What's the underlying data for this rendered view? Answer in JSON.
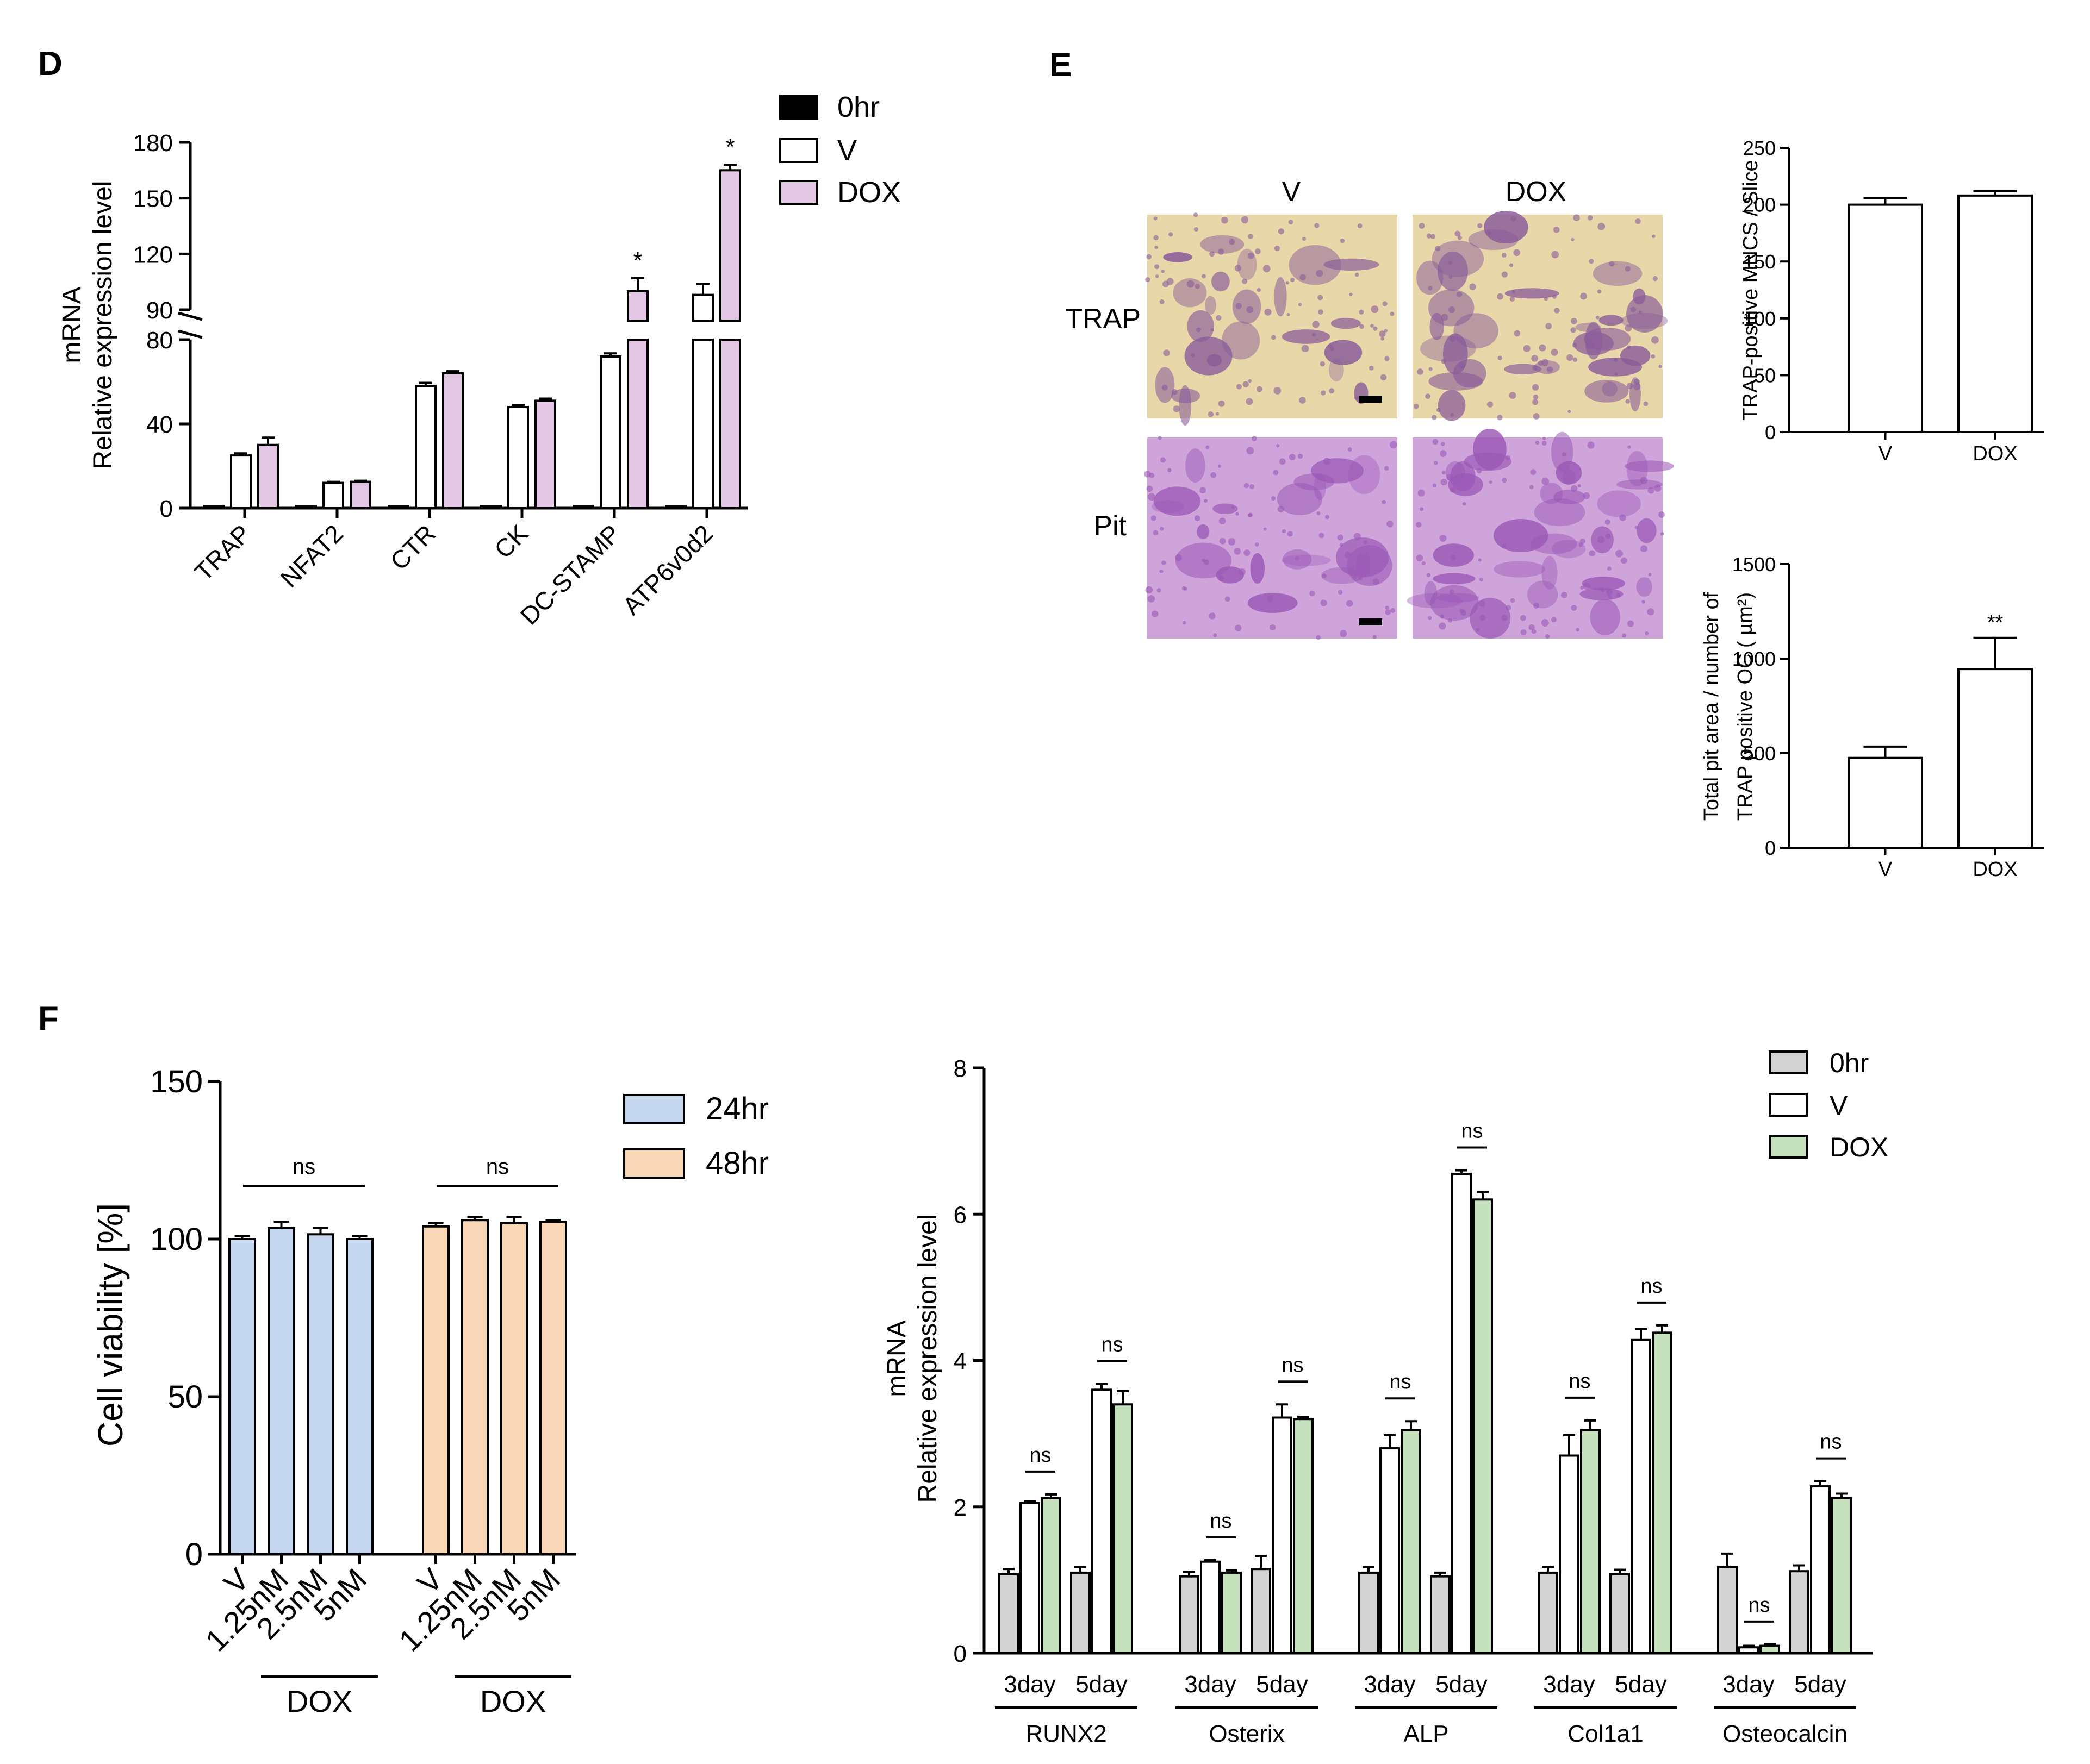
{
  "colors": {
    "h0": "#000000",
    "v": "#ffffff",
    "dox_d": "#e3c6e3",
    "h24": "#c5d8ef",
    "h48": "#f9d6b5",
    "h0_g": "#d3d3d3",
    "dox_g": "#c5e1bd",
    "trap_bg": "#e7d7a9",
    "trap_cell": "#8a5b99",
    "pit_bg": "#cfa4db",
    "pit_cell": "#9a58b6"
  },
  "panels": {
    "d": "D",
    "e": "E",
    "f": "F"
  },
  "images": {
    "col_v": "V",
    "col_dox": "DOX",
    "row_trap": "TRAP",
    "row_pit": "Pit"
  },
  "chart_data": [
    {
      "id": "D",
      "type": "bar",
      "ylabel_lines": [
        "mRNA",
        "Relative expression level"
      ],
      "categories": [
        "TRAP",
        "NFAT2",
        "CTR",
        "CK",
        "DC-STAMP",
        "ATP6v0d2"
      ],
      "series": [
        {
          "name": "0hr",
          "values": [
            1,
            1,
            1,
            1,
            1,
            1
          ],
          "errors": [
            0,
            0,
            0,
            0,
            0,
            0
          ]
        },
        {
          "name": "V",
          "values": [
            25,
            12,
            58,
            48,
            72,
            98
          ],
          "errors": [
            1,
            0.5,
            1.5,
            1,
            1.5,
            6
          ]
        },
        {
          "name": "DOX",
          "values": [
            30,
            12.5,
            64,
            51,
            100,
            165
          ],
          "errors": [
            3.5,
            0.5,
            1,
            1,
            7,
            3
          ]
        }
      ],
      "significance": [
        {
          "category": "DC-STAMP",
          "series": "DOX",
          "mark": "*"
        },
        {
          "category": "ATP6v0d2",
          "series": "DOX",
          "mark": "*"
        }
      ],
      "y_break": {
        "lower_range": [
          0,
          80
        ],
        "upper_range": [
          90,
          180
        ]
      },
      "yticks_lower": [
        0,
        40,
        80
      ],
      "yticks_upper": [
        90,
        120,
        150,
        180
      ],
      "legend": [
        "0hr",
        "V",
        "DOX"
      ]
    },
    {
      "id": "E-top",
      "type": "bar",
      "ylabel": "TRAP-positive MNCS / Slice",
      "categories": [
        "V",
        "DOX"
      ],
      "values": [
        200,
        208
      ],
      "errors": [
        6,
        4
      ],
      "ylim": [
        0,
        250
      ],
      "yticks": [
        0,
        50,
        100,
        150,
        200,
        250
      ]
    },
    {
      "id": "E-bottom",
      "type": "bar",
      "ylabel_lines": [
        "Total pit area / number of",
        "TRAP positive OC ( µm²)"
      ],
      "categories": [
        "V",
        "DOX"
      ],
      "values": [
        475,
        945
      ],
      "errors": [
        60,
        165
      ],
      "ylim": [
        0,
        1500
      ],
      "yticks": [
        0,
        500,
        1000,
        1500
      ],
      "significance": [
        {
          "category": "DOX",
          "mark": "**"
        }
      ]
    },
    {
      "id": "F-left",
      "type": "bar",
      "ylabel": "Cell viability [%]",
      "categories": [
        "V",
        "1.25nM",
        "2.5nM",
        "5nM"
      ],
      "group_label": "DOX",
      "series": [
        {
          "name": "24hr",
          "values": [
            100,
            103.5,
            101.5,
            100
          ],
          "errors": [
            1,
            2,
            2,
            1
          ]
        },
        {
          "name": "48hr",
          "values": [
            104,
            106,
            105,
            105.5
          ],
          "errors": [
            1,
            1,
            2,
            0.5
          ]
        }
      ],
      "significance": [
        "ns",
        "ns"
      ],
      "ylim": [
        0,
        150
      ],
      "yticks": [
        0,
        50,
        100,
        150
      ],
      "legend": [
        "24hr",
        "48hr"
      ]
    },
    {
      "id": "F-right",
      "type": "bar",
      "ylabel_lines": [
        "mRNA",
        "Relative expression level"
      ],
      "genes": [
        "RUNX2",
        "Osterix",
        "ALP",
        "Col1a1",
        "Osteocalcin"
      ],
      "timepoints": [
        "3day",
        "5day"
      ],
      "series": [
        {
          "name": "0hr",
          "values": [
            [
              1.08,
              1.1
            ],
            [
              1.05,
              1.15
            ],
            [
              1.1,
              1.05
            ],
            [
              1.1,
              1.08
            ],
            [
              1.18,
              1.12
            ]
          ],
          "errors": [
            [
              0.07,
              0.08
            ],
            [
              0.06,
              0.18
            ],
            [
              0.08,
              0.05
            ],
            [
              0.08,
              0.06
            ],
            [
              0.18,
              0.08
            ]
          ]
        },
        {
          "name": "V",
          "values": [
            [
              2.05,
              3.6
            ],
            [
              1.25,
              3.22
            ],
            [
              2.8,
              6.55
            ],
            [
              2.7,
              4.28
            ],
            [
              0.08,
              2.28
            ]
          ],
          "errors": [
            [
              0.03,
              0.08
            ],
            [
              0.02,
              0.18
            ],
            [
              0.18,
              0.05
            ],
            [
              0.28,
              0.15
            ],
            [
              0.02,
              0.07
            ]
          ]
        },
        {
          "name": "DOX",
          "values": [
            [
              2.12,
              3.4
            ],
            [
              1.1,
              3.2
            ],
            [
              3.05,
              6.2
            ],
            [
              3.05,
              4.38
            ],
            [
              0.1,
              2.12
            ]
          ],
          "errors": [
            [
              0.05,
              0.18
            ],
            [
              0.03,
              0.03
            ],
            [
              0.12,
              0.1
            ],
            [
              0.13,
              0.1
            ],
            [
              0.02,
              0.06
            ]
          ]
        }
      ],
      "significance": "ns",
      "ylim": [
        0,
        8
      ],
      "yticks": [
        0,
        2,
        4,
        6,
        8
      ],
      "legend": [
        "0hr",
        "V",
        "DOX"
      ]
    }
  ]
}
